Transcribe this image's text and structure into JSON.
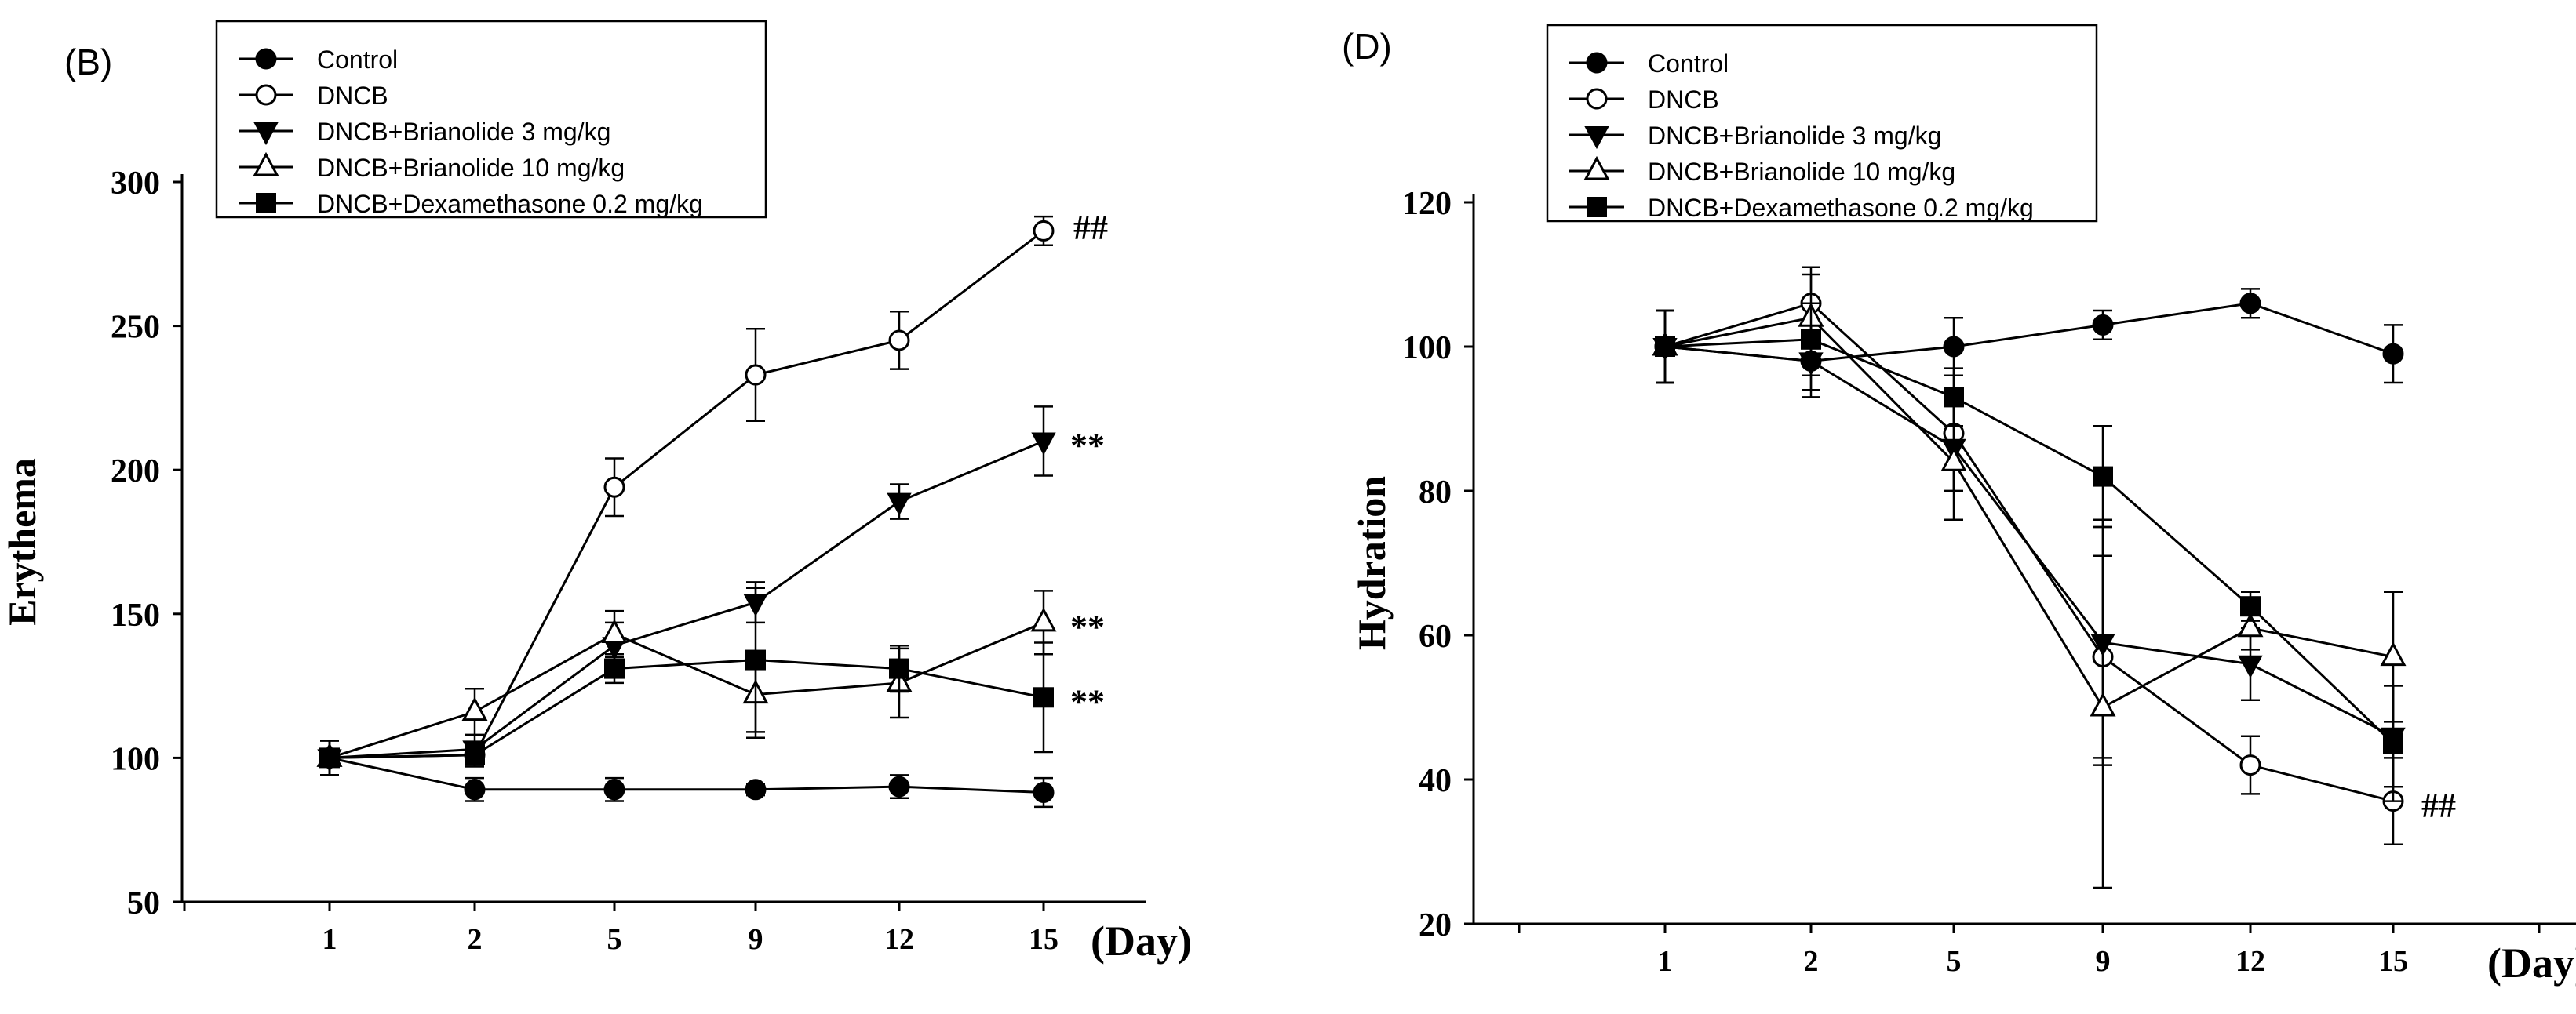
{
  "chart_data": [
    {
      "panel_label": "(B)",
      "type": "line",
      "ylabel": "Erythema",
      "xlabel": "(Day)",
      "categories": [
        "1",
        "2",
        "5",
        "9",
        "12",
        "15"
      ],
      "ylim": [
        50,
        300
      ],
      "yticks": [
        "50",
        "100",
        "150",
        "200",
        "250",
        "300"
      ],
      "legend_position": "top-left",
      "series": [
        {
          "name": "Control",
          "marker": "circle-filled",
          "values": [
            100,
            89,
            89,
            89,
            90,
            88
          ],
          "errors": [
            6,
            4,
            4,
            2,
            4,
            5
          ]
        },
        {
          "name": "DNCB",
          "marker": "circle-open",
          "values": [
            100,
            101,
            194,
            233,
            245,
            283
          ],
          "errors": [
            6,
            4,
            10,
            16,
            10,
            5
          ]
        },
        {
          "name": "DNCB+Brianolide 3 mg/kg",
          "marker": "triangle-down-filled",
          "values": [
            100,
            103,
            139,
            154,
            189,
            210
          ],
          "errors": [
            6,
            5,
            8,
            7,
            6,
            12
          ]
        },
        {
          "name": "DNCB+Brianolide 10 mg/kg",
          "marker": "triangle-up-open",
          "values": [
            100,
            116,
            143,
            122,
            126,
            147
          ],
          "errors": [
            6,
            8,
            8,
            15,
            12,
            11
          ]
        },
        {
          "name": "DNCB+Dexamethasone 0.2 mg/kg",
          "marker": "square-filled",
          "values": [
            100,
            101,
            131,
            134,
            131,
            121
          ],
          "errors": [
            6,
            4,
            5,
            25,
            8,
            19
          ]
        }
      ],
      "annotations": [
        {
          "series": "DNCB",
          "text": "##"
        },
        {
          "series": "DNCB+Brianolide 3 mg/kg",
          "text": "**"
        },
        {
          "series": "DNCB+Brianolide 10 mg/kg",
          "text": "**"
        },
        {
          "series": "DNCB+Dexamethasone 0.2 mg/kg",
          "text": "**"
        }
      ]
    },
    {
      "panel_label": "(D)",
      "type": "line",
      "ylabel": "Hydration",
      "xlabel": "(Day)",
      "categories": [
        "1",
        "2",
        "5",
        "9",
        "12",
        "15"
      ],
      "ylim": [
        20,
        120
      ],
      "yticks": [
        "20",
        "40",
        "60",
        "80",
        "100",
        "120"
      ],
      "legend_position": "top-left",
      "series": [
        {
          "name": "Control",
          "marker": "circle-filled",
          "values": [
            100,
            98,
            100,
            103,
            106,
            99
          ],
          "errors": [
            5,
            4,
            4,
            2,
            2,
            4
          ]
        },
        {
          "name": "DNCB",
          "marker": "circle-open",
          "values": [
            100,
            106,
            88,
            57,
            42,
            37
          ],
          "errors": [
            5,
            5,
            8,
            14,
            4,
            6
          ]
        },
        {
          "name": "DNCB+Brianolide 3 mg/kg",
          "marker": "triangle-down-filled",
          "values": [
            100,
            98,
            86,
            59,
            56,
            46
          ],
          "errors": [
            5,
            5,
            6,
            17,
            5,
            7
          ]
        },
        {
          "name": "DNCB+Brianolide 10 mg/kg",
          "marker": "triangle-up-open",
          "values": [
            100,
            104,
            84,
            50,
            61,
            57
          ],
          "errors": [
            5,
            6,
            8,
            25,
            3,
            9
          ]
        },
        {
          "name": "DNCB+Dexamethasone 0.2 mg/kg",
          "marker": "square-filled",
          "values": [
            100,
            101,
            93,
            82,
            64,
            45
          ],
          "errors": [
            5,
            5,
            4,
            7,
            2,
            8
          ]
        }
      ],
      "annotations": [
        {
          "series": "DNCB",
          "text": "##"
        }
      ]
    }
  ]
}
